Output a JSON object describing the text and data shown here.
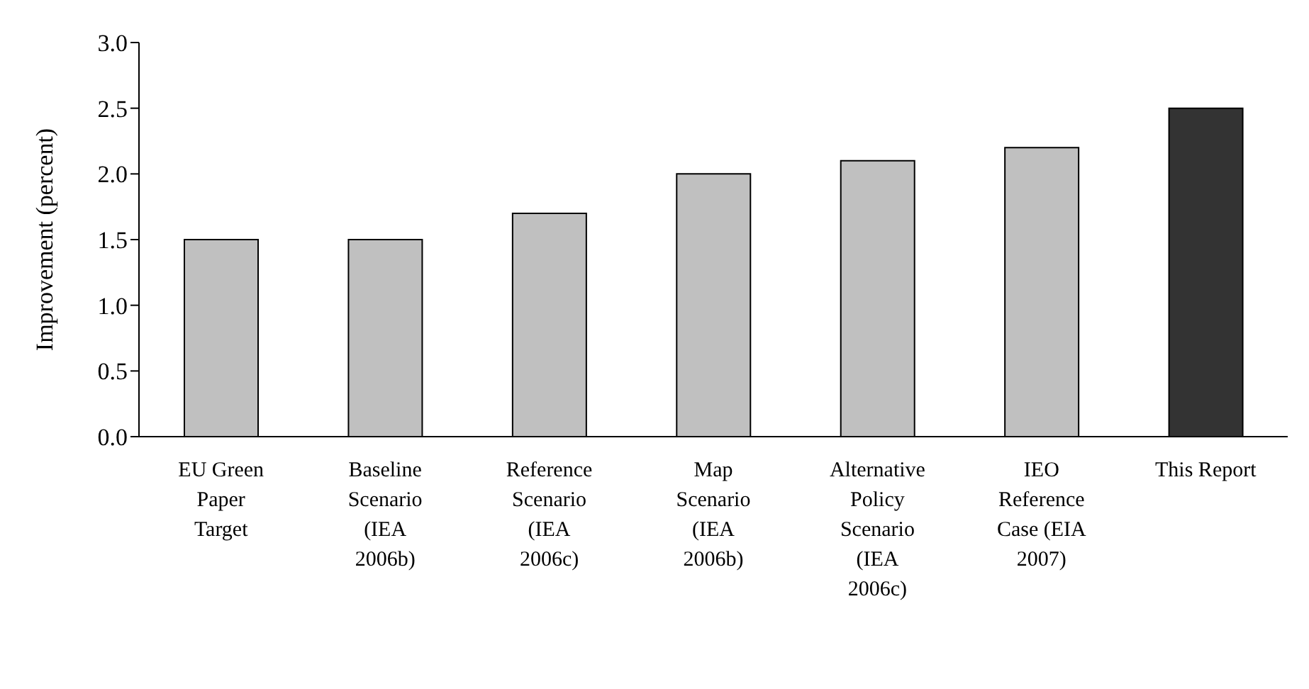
{
  "chart_data": {
    "type": "bar",
    "ylabel": "Improvement (percent)",
    "categories": [
      "EU Green Paper Target",
      "Baseline Scenario (IEA 2006b)",
      "Reference Scenario (IEA 2006c)",
      "Map Scenario (IEA 2006b)",
      "Alternative Policy Scenario (IEA 2006c)",
      "IEO Reference Case (EIA 2007)",
      "This Report"
    ],
    "values": [
      1.5,
      1.5,
      1.7,
      2.0,
      2.1,
      2.2,
      2.5
    ],
    "colors": [
      "#c0c0c0",
      "#c0c0c0",
      "#c0c0c0",
      "#c0c0c0",
      "#c0c0c0",
      "#c0c0c0",
      "#333333"
    ],
    "ylim": [
      0,
      3
    ],
    "yticks": [
      {
        "value": 0,
        "label": "0.0"
      },
      0.5,
      {
        "value": 1,
        "label": "1.0"
      },
      1.5,
      {
        "value": 2,
        "label": "2.0"
      },
      2.5,
      {
        "value": 3,
        "label": "3.0"
      }
    ],
    "grid": false,
    "legend": false
  }
}
